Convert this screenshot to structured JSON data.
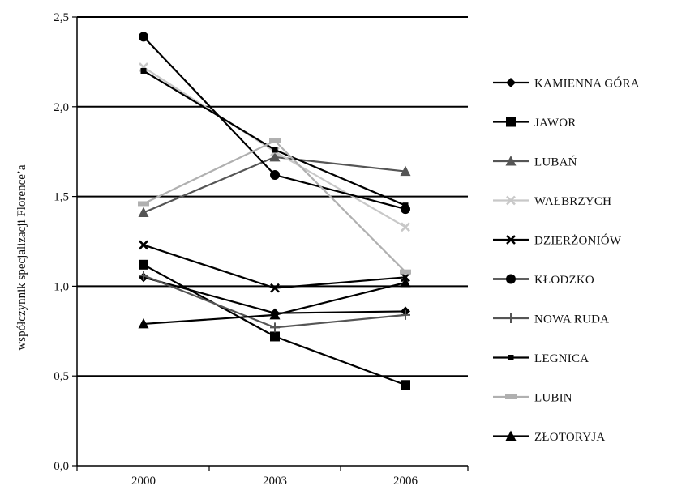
{
  "chart_data": {
    "type": "line",
    "title": "",
    "xlabel": "",
    "ylabel": "współczynnik specjalizacji Florence’a",
    "x": [
      "2000",
      "2003",
      "2006"
    ],
    "ylim": [
      0,
      2.5
    ],
    "yticks": [
      "0,0",
      "0,5",
      "1,0",
      "1,5",
      "2,0",
      "2,5"
    ],
    "grid": "horizontal",
    "legend_position": "right",
    "series": [
      {
        "name": "KAMIENNA GÓRA",
        "marker": "diamond",
        "color": "#000000",
        "values": [
          1.05,
          0.85,
          0.86
        ]
      },
      {
        "name": "JAWOR",
        "marker": "square",
        "color": "#000000",
        "values": [
          1.12,
          0.72,
          0.45
        ]
      },
      {
        "name": "LUBAŃ",
        "marker": "triangle",
        "color": "#555555",
        "values": [
          1.41,
          1.72,
          1.64
        ]
      },
      {
        "name": "WAŁBRZYCH",
        "marker": "x",
        "color": "#c8c8c8",
        "values": [
          2.22,
          1.75,
          1.33
        ]
      },
      {
        "name": "DZIERŻONIÓW",
        "marker": "x",
        "color": "#000000",
        "values": [
          1.23,
          0.99,
          1.05
        ]
      },
      {
        "name": "KŁODZKO",
        "marker": "circle",
        "color": "#000000",
        "values": [
          2.39,
          1.62,
          1.43
        ]
      },
      {
        "name": "NOWA RUDA",
        "marker": "plus",
        "color": "#555555",
        "values": [
          1.06,
          0.77,
          0.84
        ]
      },
      {
        "name": "LEGNICA",
        "marker": "small-square",
        "color": "#000000",
        "values": [
          2.2,
          1.76,
          1.45
        ]
      },
      {
        "name": "LUBIN",
        "marker": "dash",
        "color": "#b0b0b0",
        "values": [
          1.46,
          1.81,
          1.08
        ]
      },
      {
        "name": "ZŁOTORYJA",
        "marker": "triangle",
        "color": "#000000",
        "values": [
          0.79,
          0.84,
          1.02
        ]
      }
    ]
  }
}
